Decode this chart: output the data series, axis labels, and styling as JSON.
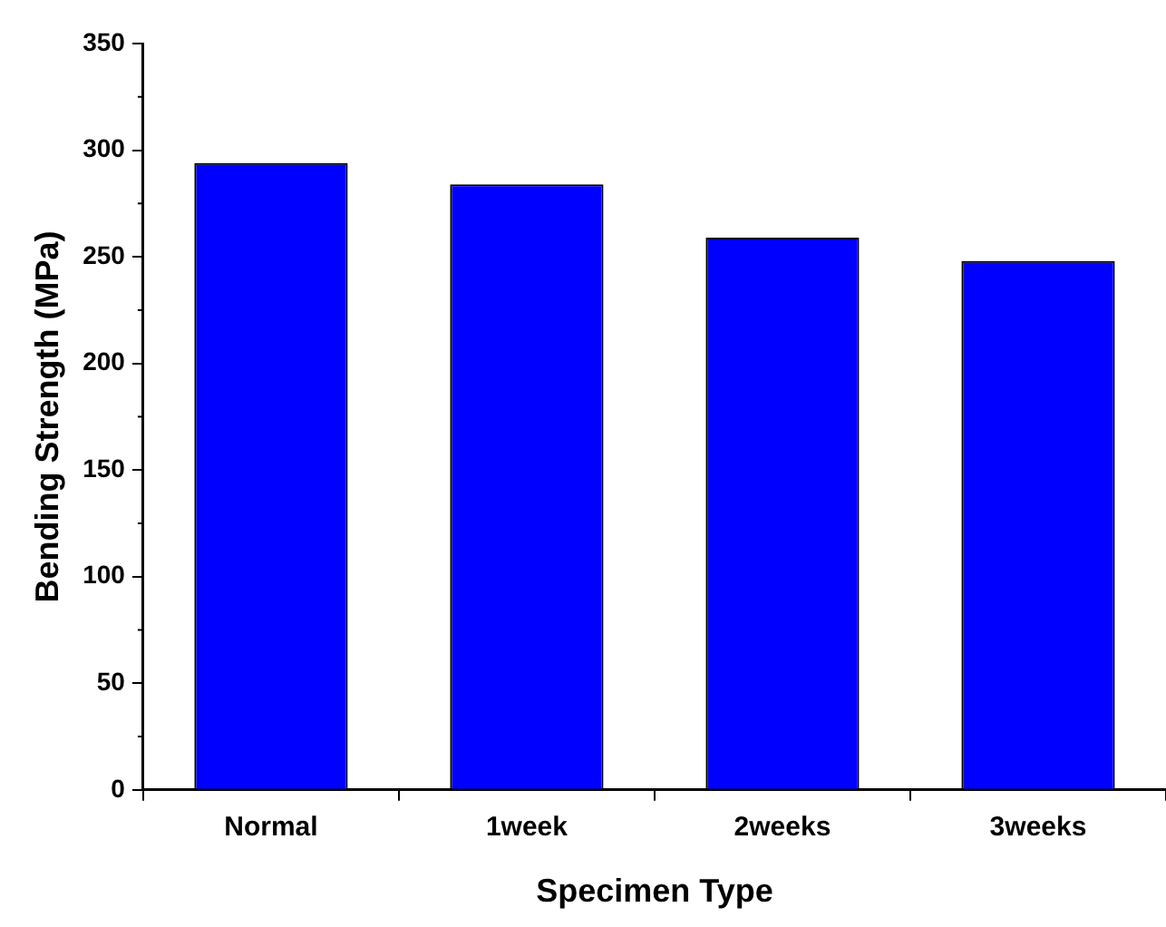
{
  "chart_data": {
    "type": "bar",
    "xlabel": "Specimen Type",
    "ylabel": "Bending Strength (MPa)",
    "categories": [
      "Normal",
      "1week",
      "2weeks",
      "3weeks"
    ],
    "values": [
      294,
      284,
      259,
      248
    ],
    "color": "#0000ff",
    "ylim": [
      0,
      350
    ],
    "yticks": [
      0,
      50,
      100,
      150,
      200,
      250,
      300,
      350
    ],
    "grid": false,
    "legend": false
  }
}
